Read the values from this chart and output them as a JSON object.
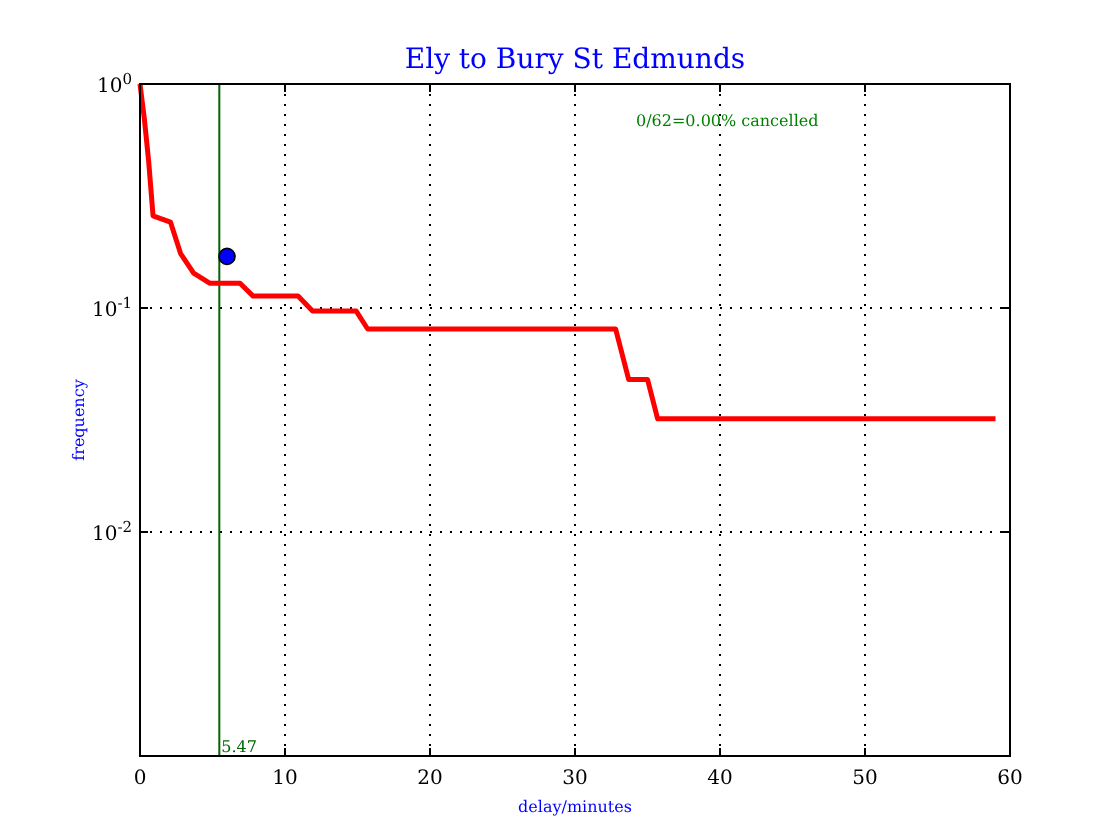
{
  "chart_data": {
    "type": "line",
    "title": "Ely to Bury St Edmunds",
    "xlabel": "delay/minutes",
    "ylabel": "frequency",
    "log": "y",
    "grid": true,
    "xlim": [
      0,
      60
    ],
    "ylim": [
      0.001,
      1
    ],
    "xticks": [
      0,
      10,
      20,
      30,
      40,
      50,
      60
    ],
    "yticks": [
      {
        "value": 1,
        "label": "10$^{0}$"
      },
      {
        "value": 0.1,
        "label": "10$^{-1}$"
      },
      {
        "value": 0.01,
        "label": "10$^{-2}$"
      },
      {
        "value": 0.001,
        "label": null
      }
    ],
    "series": [
      {
        "type": "line",
        "color": "#ff0000",
        "marker": "none",
        "x": [
          0,
          0.3,
          0.6,
          0.9,
          2.1,
          2.8,
          3.7,
          4.8,
          6.9,
          7.8,
          10.9,
          11.9,
          14.9,
          15.7,
          32.8,
          33.7,
          35,
          35.7,
          59
        ],
        "values": [
          1,
          0.7,
          0.45,
          0.258,
          0.242,
          0.175,
          0.143,
          0.129,
          0.129,
          0.113,
          0.113,
          0.097,
          0.097,
          0.0806,
          0.0806,
          0.048,
          0.048,
          0.032,
          0.032
        ]
      },
      {
        "type": "scatter",
        "color": "#0000ff",
        "marker": "circle",
        "x": [
          6
        ],
        "values": [
          0.17
        ]
      }
    ],
    "ref_lines": [
      {
        "axis": "x",
        "value": 5.47,
        "label": "5.47",
        "color": "#006400"
      }
    ],
    "annotations": [
      "0/62=0.00% cancelled"
    ]
  }
}
